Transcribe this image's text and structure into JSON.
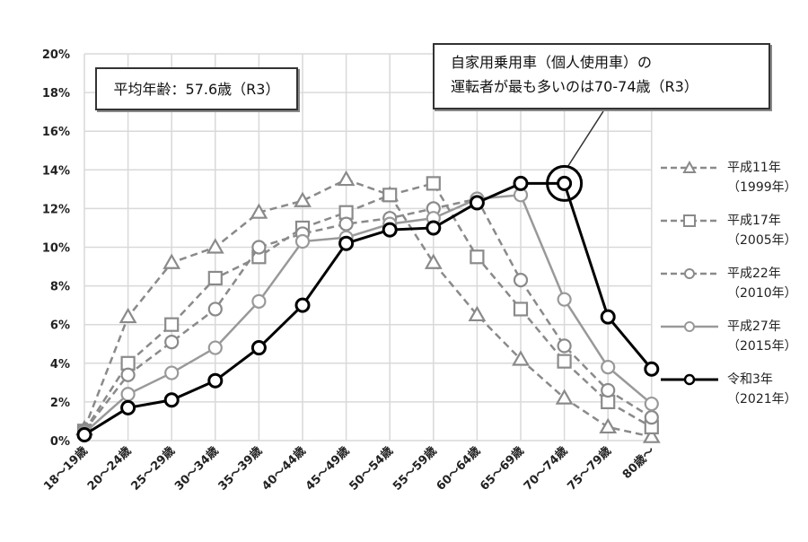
{
  "chart_data": {
    "type": "line",
    "title": "",
    "xlabel": "",
    "ylabel": "",
    "ylim": [
      0,
      20
    ],
    "y_ticks": [
      "0%",
      "2%",
      "4%",
      "6%",
      "8%",
      "10%",
      "12%",
      "14%",
      "16%",
      "18%",
      "20%"
    ],
    "grid": true,
    "legend_position": "right",
    "categories": [
      "18～19歳",
      "20～24歳",
      "25～29歳",
      "30～34歳",
      "35～39歳",
      "40～44歳",
      "45～49歳",
      "50～54歳",
      "55～59歳",
      "60～64歳",
      "65～69歳",
      "70～74歳",
      "75～79歳",
      "80歳～"
    ],
    "series": [
      {
        "name": "平成11年",
        "year": "(1999年)",
        "marker": "triangle",
        "style": "dashed",
        "color": "#8a8a8a",
        "values": [
          0.6,
          6.4,
          9.2,
          10.0,
          11.8,
          12.4,
          13.5,
          12.7,
          9.2,
          6.5,
          4.2,
          2.2,
          0.7,
          0.2
        ]
      },
      {
        "name": "平成17年",
        "year": "(2005年)",
        "marker": "square",
        "style": "dashed",
        "color": "#8a8a8a",
        "values": [
          0.5,
          4.0,
          6.0,
          8.4,
          9.5,
          11.0,
          11.8,
          12.7,
          13.3,
          9.5,
          6.8,
          4.1,
          2.0,
          0.7
        ]
      },
      {
        "name": "平成22年",
        "year": "(2010年)",
        "marker": "circle",
        "style": "dashed",
        "color": "#8a8a8a",
        "values": [
          0.5,
          3.4,
          5.1,
          6.8,
          10.0,
          10.7,
          11.2,
          11.5,
          12.0,
          12.5,
          8.3,
          4.9,
          2.6,
          1.2
        ]
      },
      {
        "name": "平成27年",
        "year": "(2015年)",
        "marker": "circle",
        "style": "solid",
        "color": "#999999",
        "values": [
          0.4,
          2.4,
          3.5,
          4.8,
          7.2,
          10.3,
          10.5,
          11.2,
          11.5,
          12.5,
          12.7,
          7.3,
          3.8,
          1.9
        ]
      },
      {
        "name": "令和3年",
        "year": "(2021年)",
        "marker": "circle",
        "style": "solid",
        "color": "#000000",
        "values": [
          0.3,
          1.7,
          2.1,
          3.1,
          4.8,
          7.0,
          10.2,
          10.9,
          11.0,
          12.3,
          13.3,
          13.3,
          6.4,
          3.7
        ]
      }
    ],
    "annotations": [
      {
        "text": "平均年齢：57.6歳（R3）"
      },
      {
        "text_line1": "自家用乗用車（個人使用車）の",
        "text_line2": "運転者が最も多いのは70-74歳（R3）",
        "highlight_category": "70～74歳",
        "highlight_series": "令和3年"
      }
    ]
  },
  "callouts": {
    "average_age": "平均年齢：57.6歳（R3）",
    "most_drivers_line1": "自家用乗用車（個人使用車）の",
    "most_drivers_line2": "運転者が最も多いのは70-74歳（R3）"
  },
  "legend": [
    {
      "label": "平成11年",
      "sub": "（1999年）"
    },
    {
      "label": "平成17年",
      "sub": "（2005年）"
    },
    {
      "label": "平成22年",
      "sub": "（2010年）"
    },
    {
      "label": "平成27年",
      "sub": "（2015年）"
    },
    {
      "label": "令和3年",
      "sub": "（2021年）"
    }
  ]
}
